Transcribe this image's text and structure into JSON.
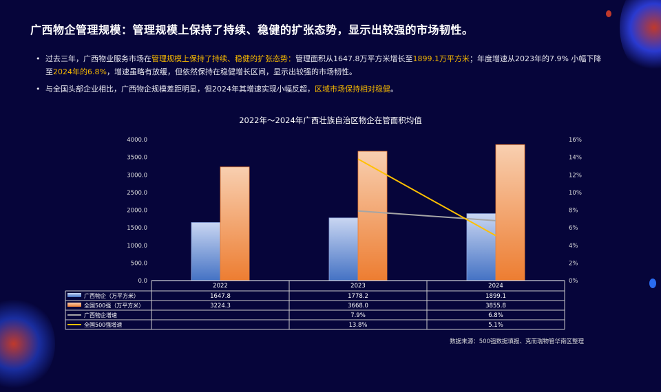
{
  "title": "广西物企管理规模：管理规模上保持了持续、稳健的扩张态势，显示出较强的市场韧性。",
  "bullets": [
    {
      "parts": [
        {
          "t": "过去三年，广西物业服务市场在"
        },
        {
          "t": "管理规模上保持了持续、稳健的扩张态势：",
          "h": true
        },
        {
          "t": "管理面积从1647.8万平方米增长至"
        },
        {
          "t": "1899.1万平方米",
          "h": true
        },
        {
          "t": "；年度增速从2023年的7.9% 小幅下降至"
        },
        {
          "t": "2024年的6.8%",
          "h": true
        },
        {
          "t": "，增速虽略有放缓，但依然保持在稳健增长区间，显示出较强的市场韧性。"
        }
      ]
    },
    {
      "parts": [
        {
          "t": "与全国头部企业相比，广西物企规模差距明显，但2024年其增速实现小幅反超，"
        },
        {
          "t": "区域市场保持相对稳健",
          "h": true
        },
        {
          "t": "。"
        }
      ]
    }
  ],
  "source": "数据来源：500强数据填报、克而瑞物管华南区整理",
  "colors": {
    "highlight": "#f5b800",
    "bar1": "#4472c4",
    "bar2": "#ed7d31",
    "line1": "#a5a5a5",
    "line2": "#ffc000"
  },
  "chart_data": {
    "type": "bar+line",
    "title": "2022年～2024年广西壮族自治区物企在管面积均值",
    "categories": [
      "2022",
      "2023",
      "2024"
    ],
    "left_axis": {
      "ylim": [
        0,
        4000
      ],
      "ticks": [
        "0.0",
        "500.0",
        "1000.0",
        "1500.0",
        "2000.0",
        "2500.0",
        "3000.0",
        "3500.0",
        "4000.0"
      ]
    },
    "right_axis": {
      "ylim": [
        0,
        16
      ],
      "ticks": [
        "0%",
        "2%",
        "4%",
        "6%",
        "8%",
        "10%",
        "12%",
        "14%",
        "16%"
      ]
    },
    "series": [
      {
        "name": "广西物企（万平方米）",
        "type": "bar",
        "axis": "left",
        "values": [
          1647.8,
          1778.2,
          1899.1
        ],
        "labels": [
          "1647.8",
          "1778.2",
          "1899.1"
        ]
      },
      {
        "name": "全国500强（万平方米）",
        "type": "bar",
        "axis": "left",
        "values": [
          3224.3,
          3668.0,
          3855.8
        ],
        "labels": [
          "3224.3",
          "3668.0",
          "3855.8"
        ]
      },
      {
        "name": "广西物企增速",
        "type": "line",
        "axis": "right",
        "values": [
          null,
          7.9,
          6.8
        ],
        "labels": [
          "",
          "7.9%",
          "6.8%"
        ]
      },
      {
        "name": "全国500强增速",
        "type": "line",
        "axis": "right",
        "values": [
          null,
          13.8,
          5.1
        ],
        "labels": [
          "",
          "13.8%",
          "5.1%"
        ]
      }
    ],
    "data_table": true
  }
}
